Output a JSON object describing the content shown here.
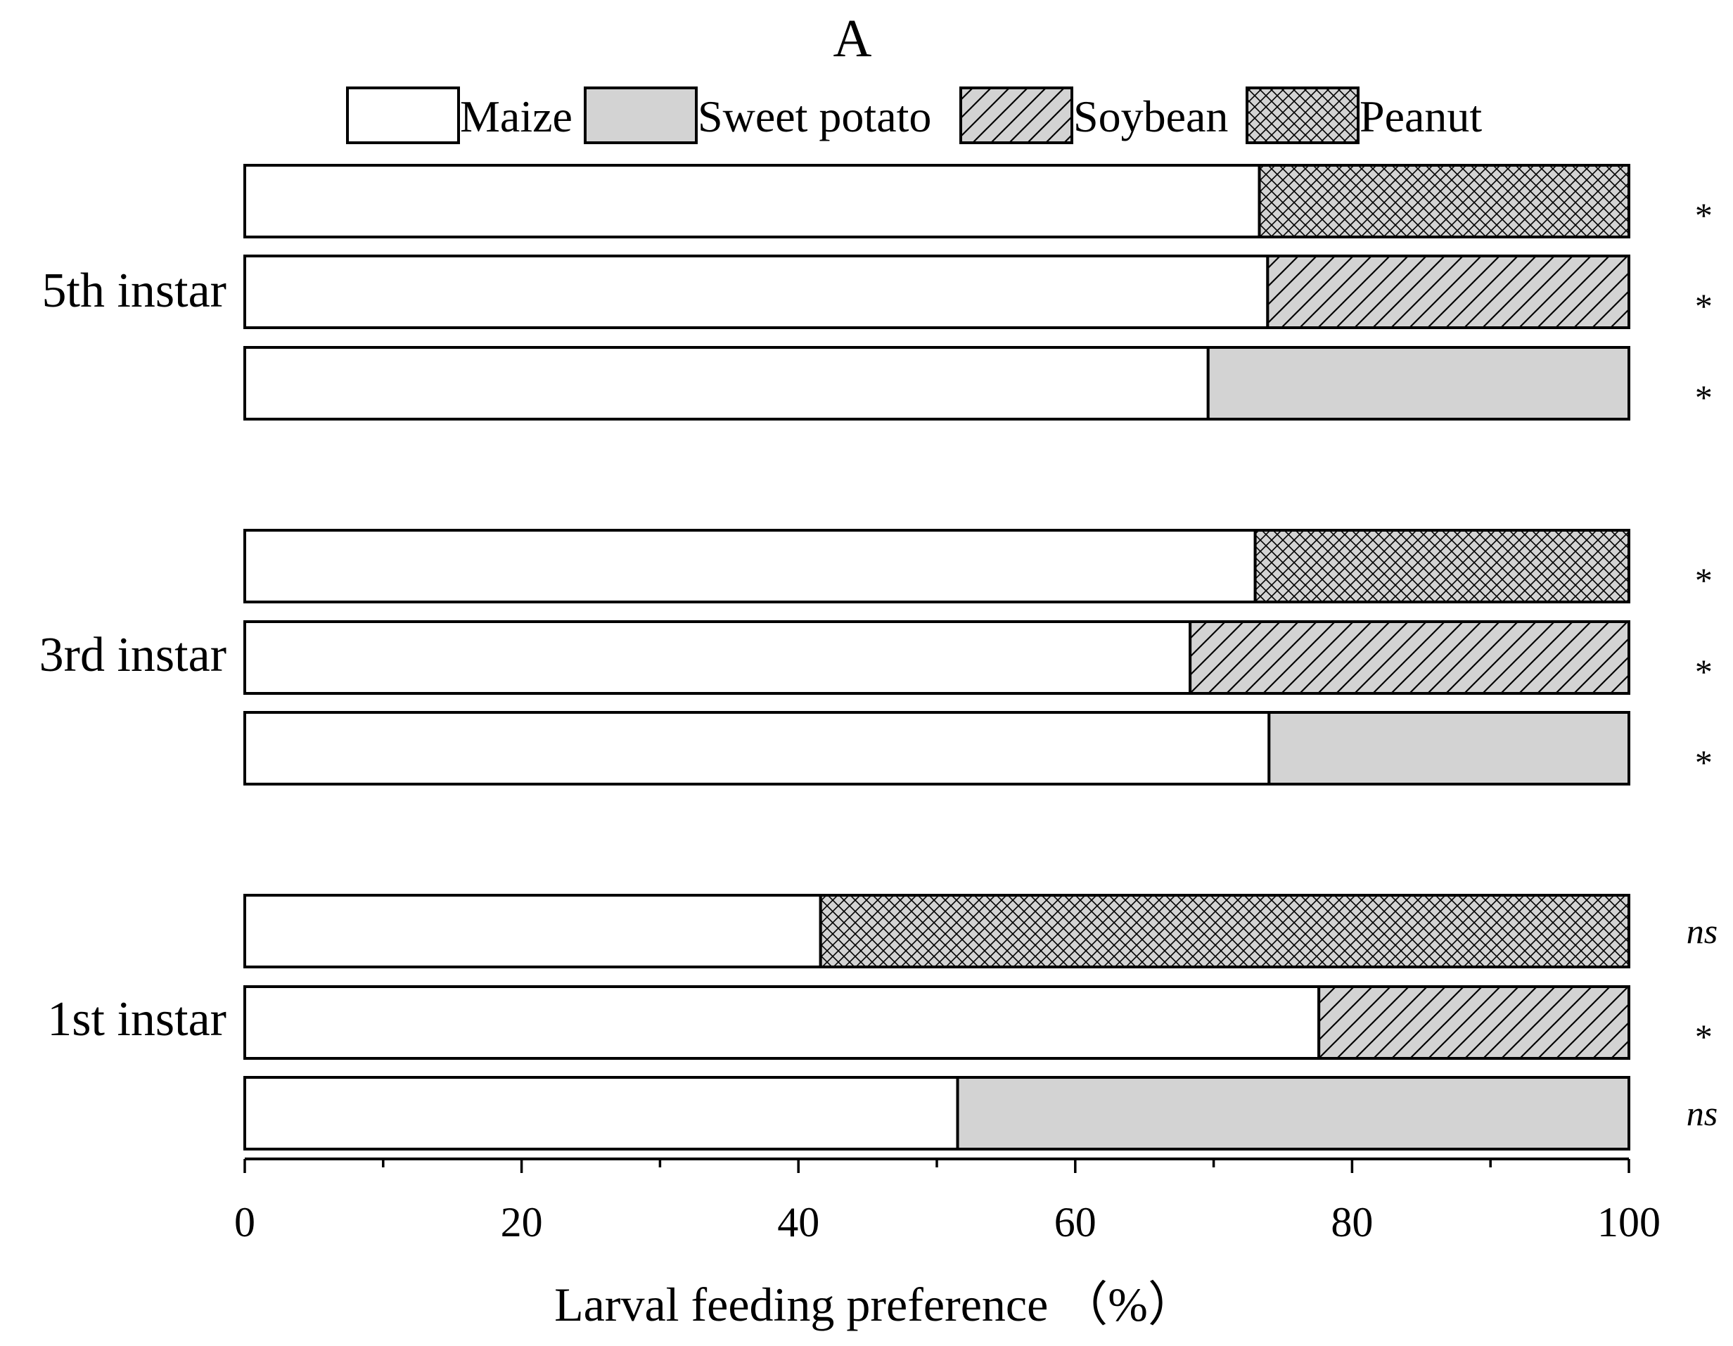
{
  "chart_data": {
    "type": "bar",
    "orientation": "horizontal",
    "stacked": true,
    "title": "A",
    "xlabel": "Larval feeding preference （%）",
    "ylabel": "",
    "xlim": [
      0,
      100
    ],
    "xticks": [
      "0",
      "20",
      "40",
      "60",
      "80",
      "100"
    ],
    "grid": false,
    "legend_position": "top",
    "legend": [
      {
        "name": "Maize",
        "fill": "#ffffff",
        "pattern": "none"
      },
      {
        "name": "Sweet potato",
        "fill": "#d3d3d3",
        "pattern": "none"
      },
      {
        "name": "Soybean",
        "fill": "#d3d3d3",
        "pattern": "diagonal-hatch"
      },
      {
        "name": "Peanut",
        "fill": "#d3d3d3",
        "pattern": "crosshatch"
      }
    ],
    "groups": [
      {
        "label": "5th instar",
        "bars": [
          {
            "maize": 73.3,
            "other": "Peanut",
            "other_value": 26.7,
            "significance": "*"
          },
          {
            "maize": 73.9,
            "other": "Soybean",
            "other_value": 26.1,
            "significance": "*"
          },
          {
            "maize": 69.6,
            "other": "Sweet potato",
            "other_value": 30.4,
            "significance": "*"
          }
        ]
      },
      {
        "label": "3rd instar",
        "bars": [
          {
            "maize": 73.0,
            "other": "Peanut",
            "other_value": 27.0,
            "significance": "*"
          },
          {
            "maize": 68.3,
            "other": "Soybean",
            "other_value": 31.7,
            "significance": "*"
          },
          {
            "maize": 74.0,
            "other": "Sweet potato",
            "other_value": 26.0,
            "significance": "*"
          }
        ]
      },
      {
        "label": "1st instar",
        "bars": [
          {
            "maize": 41.6,
            "other": "Peanut",
            "other_value": 58.4,
            "significance": "ns"
          },
          {
            "maize": 77.6,
            "other": "Soybean",
            "other_value": 22.4,
            "significance": "*"
          },
          {
            "maize": 51.5,
            "other": "Sweet potato",
            "other_value": 48.5,
            "significance": "ns"
          }
        ]
      }
    ]
  }
}
